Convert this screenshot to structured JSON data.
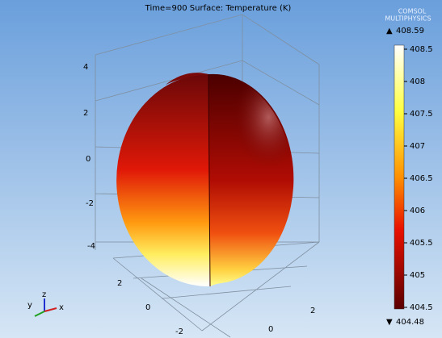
{
  "header": {
    "title": "Time=900   Surface: Temperature (K)",
    "logo_line1": "COMSOL",
    "logo_line2": "MULTIPHYSICS"
  },
  "colorbar": {
    "max_label": "408.59",
    "min_label": "404.48",
    "ticks": [
      "408.5",
      "408",
      "407.5",
      "407",
      "406.5",
      "406",
      "405.5",
      "405",
      "404.5"
    ]
  },
  "axes": {
    "z_ticks": [
      "4",
      "2",
      "0",
      "-2",
      "-4"
    ],
    "y_ticks": [
      "2",
      "0",
      "-2"
    ],
    "x_ticks": [
      "2",
      "0"
    ]
  },
  "triad": {
    "x": "x",
    "y": "y",
    "z": "z"
  }
}
